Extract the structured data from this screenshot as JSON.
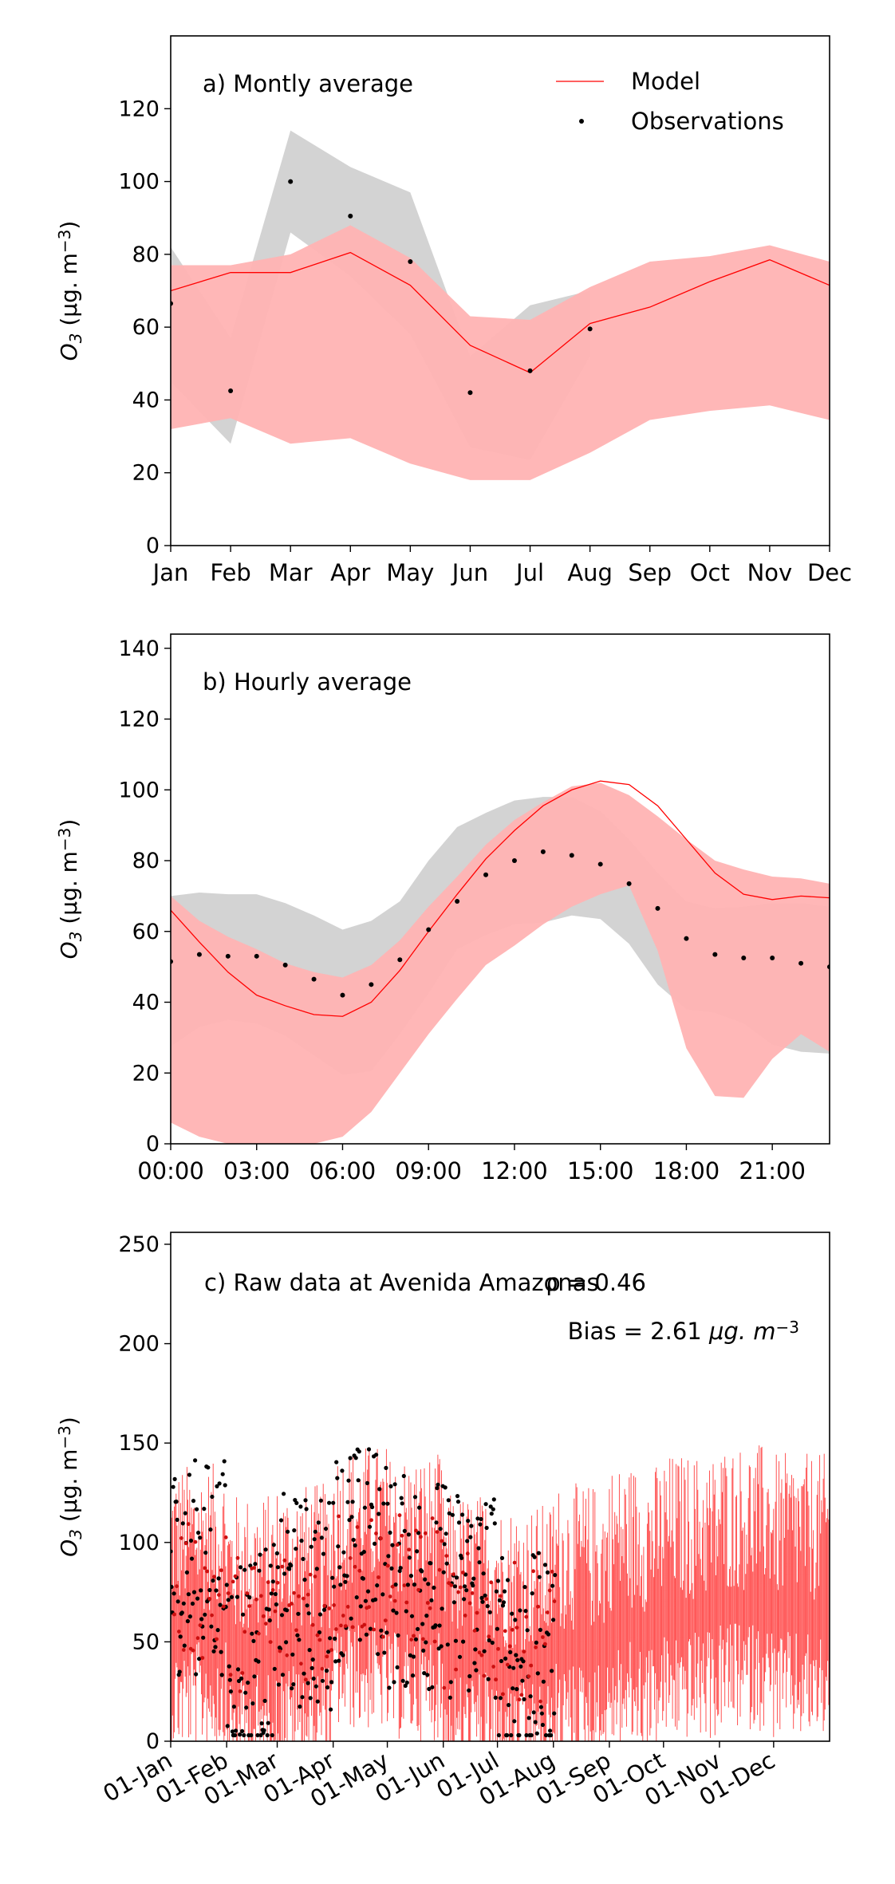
{
  "chart_data": [
    {
      "type": "line",
      "panel_label": "a) Montly average",
      "ylabel_main": "O",
      "ylabel_sub": "3",
      "ylabel_unit": "(μg. m",
      "ylabel_exp": "−3",
      "ylabel_close": ")",
      "ylim": [
        0,
        140
      ],
      "yticks": [
        0,
        20,
        40,
        60,
        80,
        100,
        120
      ],
      "xlim": [
        0,
        11
      ],
      "xticks": [
        0,
        1,
        2,
        3,
        4,
        5,
        6,
        7,
        8,
        9,
        10,
        11
      ],
      "xtick_labels": [
        "Jan",
        "Feb",
        "Mar",
        "Apr",
        "May",
        "Jun",
        "Jul",
        "Aug",
        "Sep",
        "Oct",
        "Nov",
        "Dec"
      ],
      "legend": {
        "placement": "top-right",
        "model_label": "Model",
        "obs_label": "Observations"
      },
      "model": {
        "x": [
          0,
          1,
          2,
          3,
          4,
          5,
          6,
          7,
          8,
          9,
          10,
          11
        ],
        "mean": [
          70,
          75,
          75,
          80.5,
          71.5,
          55,
          47.5,
          61,
          65.5,
          72.5,
          78.5,
          71.5
        ],
        "upper": [
          77,
          77,
          80,
          88,
          79,
          63,
          62,
          71,
          78,
          79.5,
          82.5,
          78
        ],
        "lower": [
          32,
          35,
          28,
          29.5,
          22.5,
          18,
          18,
          25.5,
          34.5,
          37,
          38.5,
          34.5
        ]
      },
      "observations": {
        "x": [
          0,
          1,
          2,
          3,
          4,
          5,
          6,
          7
        ],
        "values": [
          66.5,
          42.5,
          100,
          90.5,
          78,
          42,
          48,
          59.5
        ],
        "upper": [
          82,
          57,
          114,
          104,
          97,
          52,
          66,
          70
        ],
        "lower": [
          45,
          28,
          86,
          74,
          58,
          27,
          23.5,
          52
        ]
      }
    },
    {
      "type": "line",
      "panel_label": "b) Hourly average",
      "ylabel_main": "O",
      "ylabel_sub": "3",
      "ylabel_unit": "(μg. m",
      "ylabel_exp": "−3",
      "ylabel_close": ")",
      "ylim": [
        0,
        144
      ],
      "yticks": [
        0,
        20,
        40,
        60,
        80,
        100,
        120,
        140
      ],
      "xlim": [
        0,
        23
      ],
      "xticks": [
        0,
        3,
        6,
        9,
        12,
        15,
        18,
        21
      ],
      "xtick_labels": [
        "00:00",
        "03:00",
        "06:00",
        "09:00",
        "12:00",
        "15:00",
        "18:00",
        "21:00"
      ],
      "model": {
        "x": [
          0,
          1,
          2,
          3,
          4,
          5,
          6,
          7,
          8,
          9,
          10,
          11,
          12,
          13,
          14,
          15,
          16,
          17,
          18,
          19,
          20,
          21,
          22,
          23
        ],
        "mean": [
          66,
          57,
          48.5,
          42,
          39,
          36.5,
          36,
          40,
          49,
          60,
          70.5,
          80.5,
          88.5,
          95.5,
          100,
          102.5,
          101.5,
          95.5,
          86,
          76.5,
          70.5,
          69,
          70,
          69.5
        ],
        "upper": [
          70,
          63,
          58.5,
          55,
          51,
          48.5,
          47,
          50.5,
          57.5,
          67,
          75.5,
          84.5,
          91.5,
          96.5,
          101,
          102,
          98.5,
          92.5,
          86,
          80,
          77.5,
          75.5,
          75,
          73.5
        ],
        "lower": [
          6,
          2,
          0,
          0,
          0,
          0,
          2,
          9,
          20,
          31,
          41,
          50.5,
          56,
          62,
          67,
          70.5,
          73,
          54.5,
          27,
          13.5,
          13,
          24,
          31,
          26
        ]
      },
      "observations": {
        "x": [
          0,
          1,
          2,
          3,
          4,
          5,
          6,
          7,
          8,
          9,
          10,
          11,
          12,
          13,
          14,
          15,
          16,
          17,
          18,
          19,
          20,
          21,
          22,
          23
        ],
        "values": [
          51.5,
          53.5,
          53,
          53,
          50.5,
          46.5,
          42,
          45,
          52,
          60.5,
          68.5,
          76,
          80,
          82.5,
          81.5,
          79,
          73.5,
          66.5,
          58,
          53.5,
          52.5,
          52.5,
          51,
          50
        ],
        "upper": [
          70,
          71,
          70.5,
          70.5,
          68,
          64.5,
          60.5,
          63,
          68.5,
          80,
          89.5,
          93.5,
          97,
          98,
          98,
          94,
          86,
          76.5,
          68.5,
          66.5,
          67,
          68,
          68,
          67
        ],
        "lower": [
          27.5,
          33,
          35,
          34,
          30.5,
          25,
          19.5,
          20.5,
          31,
          42.5,
          55,
          59,
          62,
          62.5,
          64.5,
          63.5,
          56.5,
          45,
          38,
          37,
          34,
          28,
          26,
          25.5
        ]
      }
    },
    {
      "type": "line",
      "panel_label": "c) Raw data at Avenida Amazonas",
      "rho_label": "ρ = 0.46",
      "bias_label_main": "Bias = 2.61",
      "bias_label_unit": "μg. m",
      "bias_label_exp": "−3",
      "ylabel_main": "O",
      "ylabel_sub": "3",
      "ylabel_unit": "(μg. m",
      "ylabel_exp": "−3",
      "ylabel_close": ")",
      "ylim": [
        0,
        256
      ],
      "yticks": [
        0,
        50,
        100,
        150,
        200,
        250
      ],
      "xlim": [
        0,
        365
      ],
      "xticks": [
        0,
        31,
        59,
        90,
        120,
        151,
        181,
        212,
        243,
        273,
        304,
        334
      ],
      "xtick_labels": [
        "01-Jan",
        "01-Feb",
        "01-Mar",
        "01-Apr",
        "01-May",
        "01-Jun",
        "01-Jul",
        "01-Aug",
        "01-Sep",
        "01-Oct",
        "01-Nov",
        "01-Dec"
      ],
      "model_level_by_month": [
        75,
        60,
        65,
        85,
        80,
        60,
        55,
        65,
        75,
        80,
        85,
        80
      ],
      "observation_level_by_month": [
        88,
        45,
        70,
        95,
        80,
        75,
        40,
        55
      ],
      "observation_coverage_days": [
        0,
        213
      ]
    }
  ],
  "colors": {
    "model": "#ff0000",
    "model_band": "#ffb3b3",
    "obs_band": "#d3d3d3",
    "observations": "#000000"
  }
}
